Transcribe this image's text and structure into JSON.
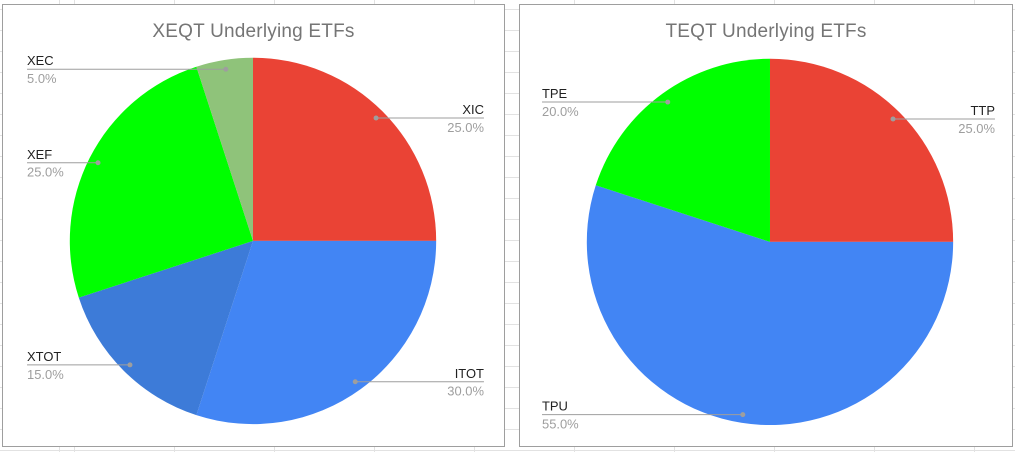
{
  "chart_data": [
    {
      "type": "pie",
      "title": "XEQT Underlying ETFs",
      "categories": [
        "XIC",
        "ITOT",
        "XTOT",
        "XEF",
        "XEC"
      ],
      "values": [
        25,
        30,
        15,
        25,
        5
      ],
      "labels_pct": [
        "25.0%",
        "30.0%",
        "15.0%",
        "25.0%",
        "5.0%"
      ],
      "colors": [
        "#EA4335",
        "#4285F4",
        "#3D7BD8",
        "#00FF00",
        "#8FC37A"
      ],
      "start_angle_deg": 0,
      "direction": "clockwise",
      "legend_position": "labeled-leader-lines",
      "title_color": "#757575",
      "label_name_color": "#212121",
      "label_pct_color": "#9e9e9e",
      "leader_line_color": "#9e9e9e"
    },
    {
      "type": "pie",
      "title": "TEQT Underlying ETFs",
      "categories": [
        "TTP",
        "TPU",
        "TPE"
      ],
      "values": [
        25,
        55,
        20
      ],
      "labels_pct": [
        "25.0%",
        "55.0%",
        "20.0%"
      ],
      "colors": [
        "#EA4335",
        "#4285F4",
        "#00FF00"
      ],
      "start_angle_deg": 0,
      "direction": "clockwise",
      "legend_position": "labeled-leader-lines",
      "title_color": "#757575",
      "label_name_color": "#212121",
      "label_pct_color": "#9e9e9e",
      "leader_line_color": "#9e9e9e"
    }
  ]
}
